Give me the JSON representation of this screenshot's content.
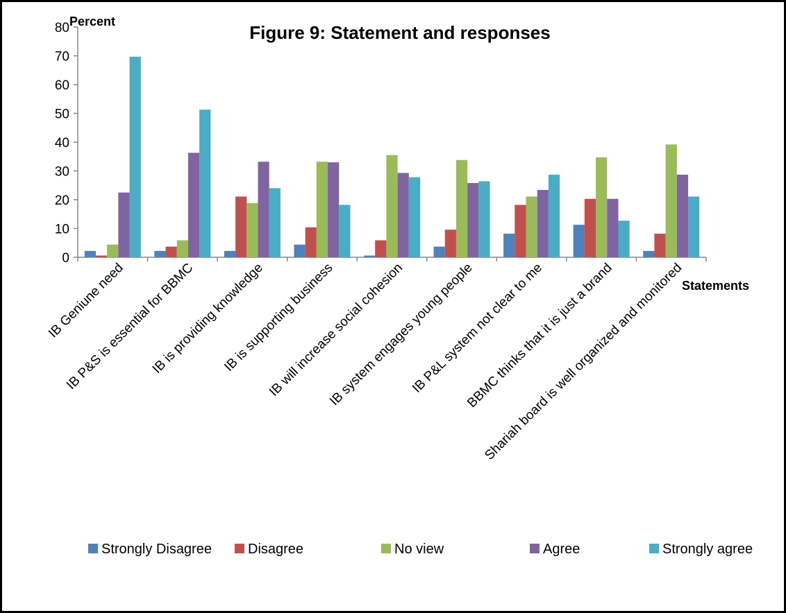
{
  "chart_data": {
    "type": "bar",
    "title": "Figure 9: Statement and responses",
    "xlabel": "Statements",
    "ylabel": "Percent",
    "ylim": [
      0,
      80
    ],
    "yticks": [
      0,
      10,
      20,
      30,
      40,
      50,
      60,
      70,
      80
    ],
    "grid": false,
    "legend_position": "bottom",
    "categories": [
      "IB Geniune need",
      "IB  P&S is essential for BBMC",
      "IB  is providing knowledge",
      "IB is supporting business",
      "IB will increase social cohesion",
      "IB system engages young people",
      "IB P&L system not clear to me",
      "BBMC thinks that it is just a brand",
      "Shariah  board is well organized and monitored"
    ],
    "series": [
      {
        "name": "Strongly Disagree",
        "color": "#4F81BD",
        "values": [
          2.2,
          2.2,
          2.2,
          4.4,
          0.6,
          3.7,
          8.2,
          11.3,
          2.2
        ]
      },
      {
        "name": "Disagree",
        "color": "#C0504D",
        "values": [
          0.6,
          3.7,
          21.1,
          10.4,
          5.9,
          9.6,
          18.2,
          20.3,
          8.2
        ]
      },
      {
        "name": "No view",
        "color": "#9BBB59",
        "values": [
          4.4,
          5.9,
          18.8,
          33.2,
          35.5,
          33.8,
          21.1,
          34.7,
          39.2
        ]
      },
      {
        "name": "Agree",
        "color": "#8064A2",
        "values": [
          22.5,
          36.3,
          33.2,
          33.0,
          29.3,
          25.8,
          23.4,
          20.3,
          28.7
        ]
      },
      {
        "name": "Strongly  agree",
        "color": "#4BACC6",
        "values": [
          69.7,
          51.3,
          24.0,
          18.2,
          27.8,
          26.4,
          28.7,
          12.7,
          21.1
        ]
      }
    ]
  }
}
